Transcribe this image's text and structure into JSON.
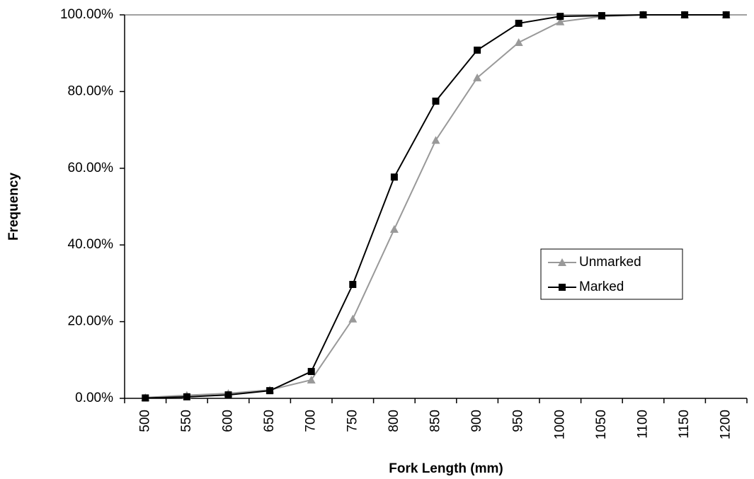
{
  "chart_data": {
    "type": "line",
    "x_label": "Fork Length (mm)",
    "y_label": "Frequency",
    "categories": [
      "500",
      "550",
      "600",
      "650",
      "700",
      "750",
      "800",
      "850",
      "900",
      "950",
      "1000",
      "1050",
      "1100",
      "1150",
      "1200"
    ],
    "series": [
      {
        "name": "Unmarked",
        "color": "#999999",
        "marker": "triangle",
        "values": [
          0.2,
          0.8,
          1.3,
          2.2,
          4.8,
          20.7,
          44.1,
          67.3,
          83.6,
          92.8,
          98.2,
          99.6,
          100,
          100,
          100
        ]
      },
      {
        "name": "Marked",
        "color": "#000000",
        "marker": "square",
        "values": [
          0.1,
          0.4,
          0.9,
          2.0,
          7.0,
          29.7,
          57.7,
          77.5,
          90.8,
          97.8,
          99.6,
          99.8,
          100,
          100,
          100
        ]
      }
    ],
    "ylim": [
      0,
      100
    ],
    "yticks": [
      {
        "value": 0,
        "label": "0.00%"
      },
      {
        "value": 20,
        "label": "20.00%"
      },
      {
        "value": 40,
        "label": "40.00%"
      },
      {
        "value": 60,
        "label": "60.00%"
      },
      {
        "value": 80,
        "label": "80.00%"
      },
      {
        "value": 100,
        "label": "100.00%"
      }
    ],
    "legend": "right"
  }
}
